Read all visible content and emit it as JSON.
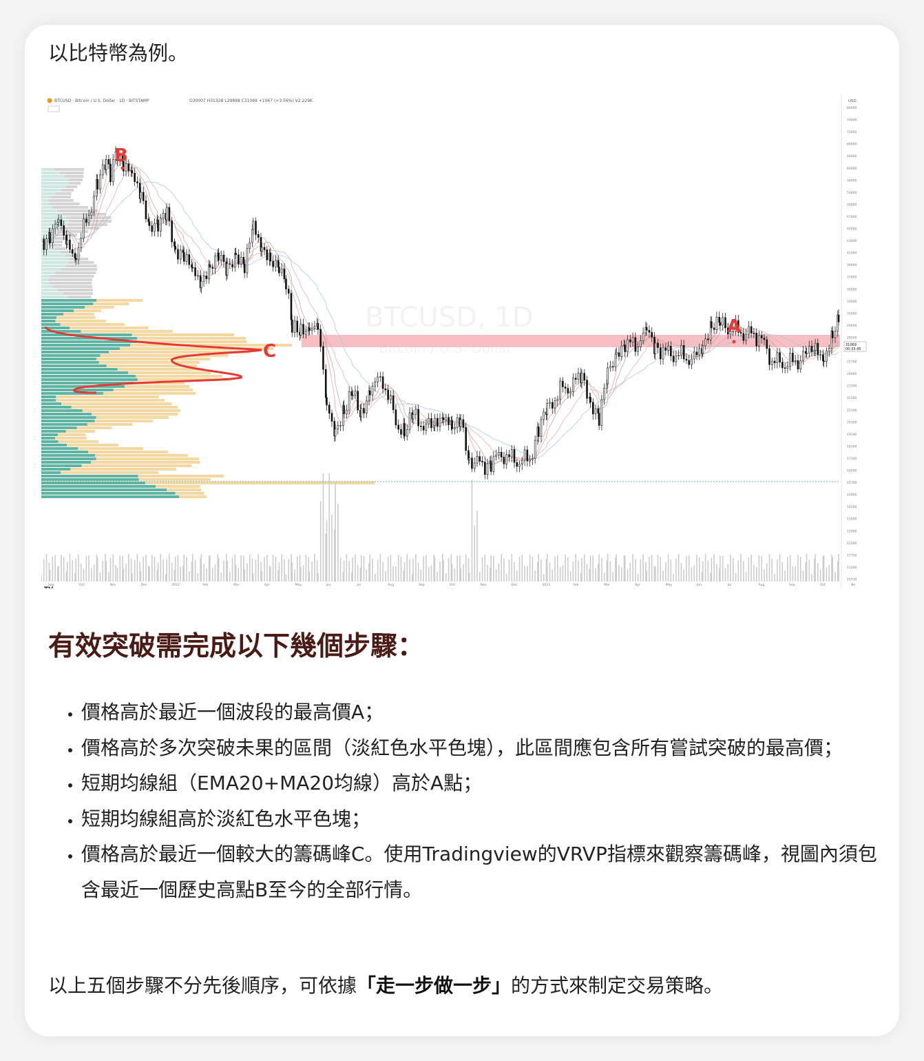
{
  "intro": "以比特幣為例。",
  "chart_header": {
    "symbol": "BTCUSD · Bitcoin / U.S. Dollar · 1D · BITSTAMP",
    "ohlc": "O30007 H31328 L29898 C31069 +1067 (+3.56%) V2.229K",
    "currency": "USD",
    "watermark_symbol": "BTCUSD, 1D",
    "watermark_name": "Bitcoin / U.S. Dollar",
    "last_price": "31069",
    "countdown": "00:33:45"
  },
  "chart_data": {
    "type": "candlestick",
    "annotations": [
      "A",
      "B",
      "C"
    ],
    "y_ticks": [
      "80000",
      "76000",
      "72000",
      "68000",
      "64000",
      "60000",
      "56000",
      "53000",
      "50000",
      "47000",
      "45000",
      "43000",
      "41000",
      "39000",
      "37000",
      "35000",
      "33000",
      "31000",
      "29000",
      "28500",
      "26800",
      "25700",
      "24600",
      "23300",
      "22100",
      "21100",
      "20100",
      "19100",
      "18100",
      "17300",
      "16500",
      "15700",
      "14900",
      "14200",
      "13500",
      "12900",
      "12300",
      "11750",
      "11200",
      "10730",
      "10270"
    ],
    "x_ticks": [
      "Sep",
      "Oct",
      "Nov",
      "Dec",
      "2022",
      "Feb",
      "Mar",
      "Apr",
      "May",
      "Jun",
      "Jul",
      "Aug",
      "Sep",
      "Oct",
      "Nov",
      "Dec",
      "2023",
      "Feb",
      "Mar",
      "Apr",
      "May",
      "Jun",
      "Jul",
      "Aug",
      "Sep",
      "Oct",
      "No"
    ],
    "price_path": [
      [
        0,
        44000
      ],
      [
        10,
        46000
      ],
      [
        20,
        47500
      ],
      [
        30,
        44000
      ],
      [
        40,
        42000
      ],
      [
        55,
        50000
      ],
      [
        65,
        57000
      ],
      [
        75,
        62000
      ],
      [
        80,
        60000
      ],
      [
        88,
        66000
      ],
      [
        95,
        63000
      ],
      [
        105,
        58000
      ],
      [
        115,
        55000
      ],
      [
        125,
        48000
      ],
      [
        135,
        47000
      ],
      [
        145,
        50000
      ],
      [
        155,
        43000
      ],
      [
        165,
        42000
      ],
      [
        175,
        38000
      ],
      [
        185,
        37500
      ],
      [
        195,
        40000
      ],
      [
        205,
        41000
      ],
      [
        215,
        39000
      ],
      [
        225,
        42500
      ],
      [
        235,
        39500
      ],
      [
        245,
        46500
      ],
      [
        255,
        44000
      ],
      [
        265,
        41000
      ],
      [
        275,
        38500
      ],
      [
        283,
        37000
      ],
      [
        290,
        30000
      ],
      [
        300,
        29500
      ],
      [
        310,
        31000
      ],
      [
        320,
        30200
      ],
      [
        330,
        21000
      ],
      [
        340,
        19500
      ],
      [
        350,
        21000
      ],
      [
        360,
        22500
      ],
      [
        370,
        20500
      ],
      [
        380,
        23500
      ],
      [
        395,
        24000
      ],
      [
        410,
        20000
      ],
      [
        420,
        19000
      ],
      [
        430,
        20500
      ],
      [
        445,
        19500
      ],
      [
        455,
        19800
      ],
      [
        465,
        21000
      ],
      [
        475,
        19100
      ],
      [
        485,
        20000
      ],
      [
        495,
        17000
      ],
      [
        510,
        16500
      ],
      [
        520,
        16800
      ],
      [
        535,
        17300
      ],
      [
        550,
        16800
      ],
      [
        565,
        17000
      ],
      [
        575,
        19200
      ],
      [
        585,
        21000
      ],
      [
        600,
        23000
      ],
      [
        615,
        23500
      ],
      [
        625,
        24800
      ],
      [
        635,
        22000
      ],
      [
        645,
        20000
      ],
      [
        655,
        24500
      ],
      [
        665,
        27500
      ],
      [
        675,
        28000
      ],
      [
        690,
        28300
      ],
      [
        700,
        29500
      ],
      [
        710,
        28000
      ],
      [
        725,
        27000
      ],
      [
        740,
        26800
      ],
      [
        755,
        26200
      ],
      [
        765,
        28500
      ],
      [
        775,
        30500
      ],
      [
        785,
        30600
      ],
      [
        800,
        30000
      ],
      [
        815,
        29500
      ],
      [
        830,
        29200
      ],
      [
        845,
        26200
      ],
      [
        860,
        25800
      ],
      [
        875,
        26200
      ],
      [
        885,
        26800
      ],
      [
        895,
        27500
      ],
      [
        905,
        27000
      ],
      [
        915,
        28800
      ],
      [
        922,
        31069
      ]
    ]
  },
  "heading": "有效突破需完成以下幾個步驟：",
  "steps": [
    "價格高於最近一個波段的最高價A；",
    "價格高於多次突破未果的區間（淡紅色水平色塊），此區間應包含所有嘗試突破的最高價；",
    "短期均線組（EMA20+MA20均線）高於A點；",
    "短期均線組高於淡紅色水平色塊；",
    "價格高於最近一個較大的籌碼峰C。使用Tradingview的VRVP指標來觀察籌碼峰，視圖內須包含最近一個歷史高點B至今的全部行情。"
  ],
  "closing": {
    "before": "以上五個步驟不分先後順序，可依據",
    "bold": "「走一步做一步」",
    "after": "的方式來制定交易策略。"
  },
  "colors": {
    "heading": "#4a1a14",
    "annotation_red": "#e53935",
    "zone": "#f3b4b8",
    "vp_teal": "#5fb3a3",
    "vp_orange": "#f5d7a1"
  }
}
